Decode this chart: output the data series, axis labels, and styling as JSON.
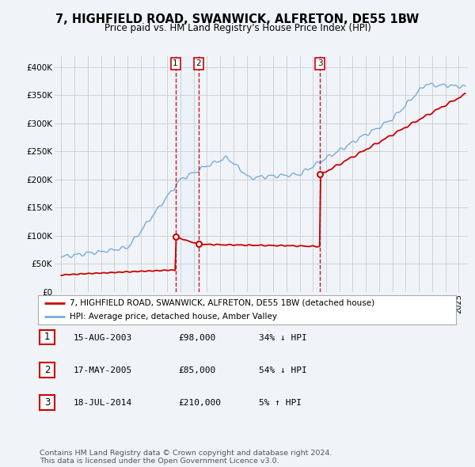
{
  "title": "7, HIGHFIELD ROAD, SWANWICK, ALFRETON, DE55 1BW",
  "subtitle": "Price paid vs. HM Land Registry's House Price Index (HPI)",
  "ylabel_ticks": [
    "£0",
    "£50K",
    "£100K",
    "£150K",
    "£200K",
    "£250K",
    "£300K",
    "£350K",
    "£400K"
  ],
  "ytick_vals": [
    0,
    50000,
    100000,
    150000,
    200000,
    250000,
    300000,
    350000,
    400000
  ],
  "ylim": [
    0,
    420000
  ],
  "xlim_start": 1994.5,
  "xlim_end": 2025.7,
  "sale_dates": [
    2003.62,
    2005.37,
    2014.54
  ],
  "sale_prices": [
    98000,
    85000,
    210000
  ],
  "sale_labels": [
    "1",
    "2",
    "3"
  ],
  "vline_color": "#cc0000",
  "sale_color": "#cc0000",
  "hpi_color": "#7aaadd",
  "shade_color": "#ddeeff",
  "legend_entries": [
    "7, HIGHFIELD ROAD, SWANWICK, ALFRETON, DE55 1BW (detached house)",
    "HPI: Average price, detached house, Amber Valley"
  ],
  "table_data": [
    [
      "1",
      "15-AUG-2003",
      "£98,000",
      "34% ↓ HPI"
    ],
    [
      "2",
      "17-MAY-2005",
      "£85,000",
      "54% ↓ HPI"
    ],
    [
      "3",
      "18-JUL-2014",
      "£210,000",
      "5% ↑ HPI"
    ]
  ],
  "footnote": "Contains HM Land Registry data © Crown copyright and database right 2024.\nThis data is licensed under the Open Government Licence v3.0.",
  "bg_color": "#f0f4f8",
  "plot_bg_color": "#f0f4f8",
  "grid_color": "#cccccc"
}
